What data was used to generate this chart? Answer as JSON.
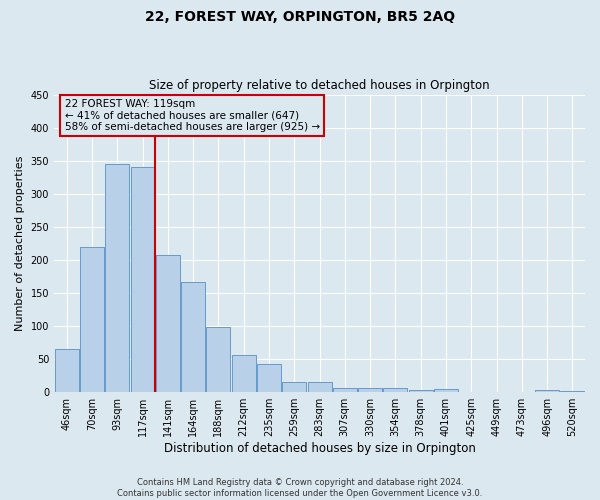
{
  "title": "22, FOREST WAY, ORPINGTON, BR5 2AQ",
  "subtitle": "Size of property relative to detached houses in Orpington",
  "xlabel": "Distribution of detached houses by size in Orpington",
  "ylabel": "Number of detached properties",
  "bar_labels": [
    "46sqm",
    "70sqm",
    "93sqm",
    "117sqm",
    "141sqm",
    "164sqm",
    "188sqm",
    "212sqm",
    "235sqm",
    "259sqm",
    "283sqm",
    "307sqm",
    "330sqm",
    "354sqm",
    "378sqm",
    "401sqm",
    "425sqm",
    "449sqm",
    "473sqm",
    "496sqm",
    "520sqm"
  ],
  "bar_values": [
    65,
    220,
    345,
    340,
    207,
    167,
    99,
    57,
    42,
    15,
    15,
    7,
    6,
    7,
    3,
    5,
    0,
    0,
    0,
    3,
    2
  ],
  "bar_color": "#b8d0e8",
  "bar_edge_color": "#6699cc",
  "vline_color": "#cc0000",
  "annotation_title": "22 FOREST WAY: 119sqm",
  "annotation_line1": "← 41% of detached houses are smaller (647)",
  "annotation_line2": "58% of semi-detached houses are larger (925) →",
  "annotation_box_color": "#cc0000",
  "ylim": [
    0,
    450
  ],
  "yticks": [
    0,
    50,
    100,
    150,
    200,
    250,
    300,
    350,
    400,
    450
  ],
  "footnote1": "Contains HM Land Registry data © Crown copyright and database right 2024.",
  "footnote2": "Contains public sector information licensed under the Open Government Licence v3.0.",
  "bg_color": "#dce8f0",
  "grid_color": "#ffffff"
}
